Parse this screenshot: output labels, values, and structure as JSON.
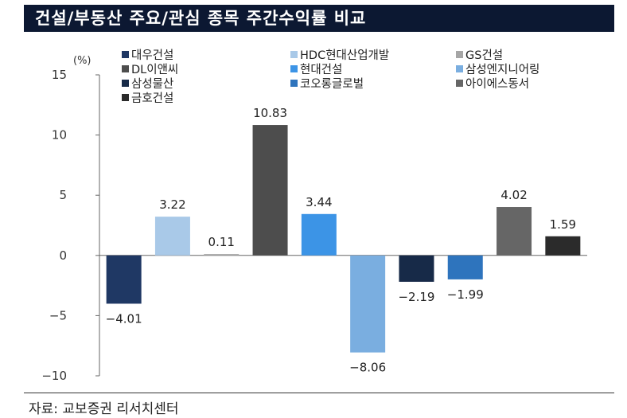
{
  "header": {
    "title": "건설/부동산 주요/관심 종목 주간수익률 비교"
  },
  "footer": {
    "source": "자료: 교보증권 리서치센터"
  },
  "chart_data": {
    "type": "bar",
    "title": "건설/부동산 주요/관심 종목 주간수익률 비교",
    "unit_label": "(%)",
    "ylim": [
      -10,
      15
    ],
    "yticks": [
      15,
      10,
      5,
      0,
      -5,
      -10
    ],
    "ytick_labels": [
      "15",
      "10",
      "5",
      "0",
      "−5",
      "−10"
    ],
    "grid": false,
    "legend_position": "top",
    "series": [
      {
        "name": "대우건설",
        "value": -4.01,
        "label": "−4.01",
        "color": "#1f3864"
      },
      {
        "name": "HDC현대산업개발",
        "value": 3.22,
        "label": "3.22",
        "color": "#a9c9e8"
      },
      {
        "name": "GS건설",
        "value": 0.11,
        "label": "0.11",
        "color": "#a6a6a6"
      },
      {
        "name": "DL이앤씨",
        "value": 10.83,
        "label": "10.83",
        "color": "#4d4d4d"
      },
      {
        "name": "현대건설",
        "value": 3.44,
        "label": "3.44",
        "color": "#3c94e6"
      },
      {
        "name": "삼성엔지니어링",
        "value": -8.06,
        "label": "−8.06",
        "color": "#7aaee0"
      },
      {
        "name": "삼성물산",
        "value": -2.19,
        "label": "−2.19",
        "color": "#172a48"
      },
      {
        "name": "코오롱글로벌",
        "value": -1.99,
        "label": "−1.99",
        "color": "#2e74bd"
      },
      {
        "name": "아이에스동서",
        "value": 4.02,
        "label": "4.02",
        "color": "#666666"
      },
      {
        "name": "금호건설",
        "value": 1.59,
        "label": "1.59",
        "color": "#2b2b2b"
      }
    ]
  }
}
